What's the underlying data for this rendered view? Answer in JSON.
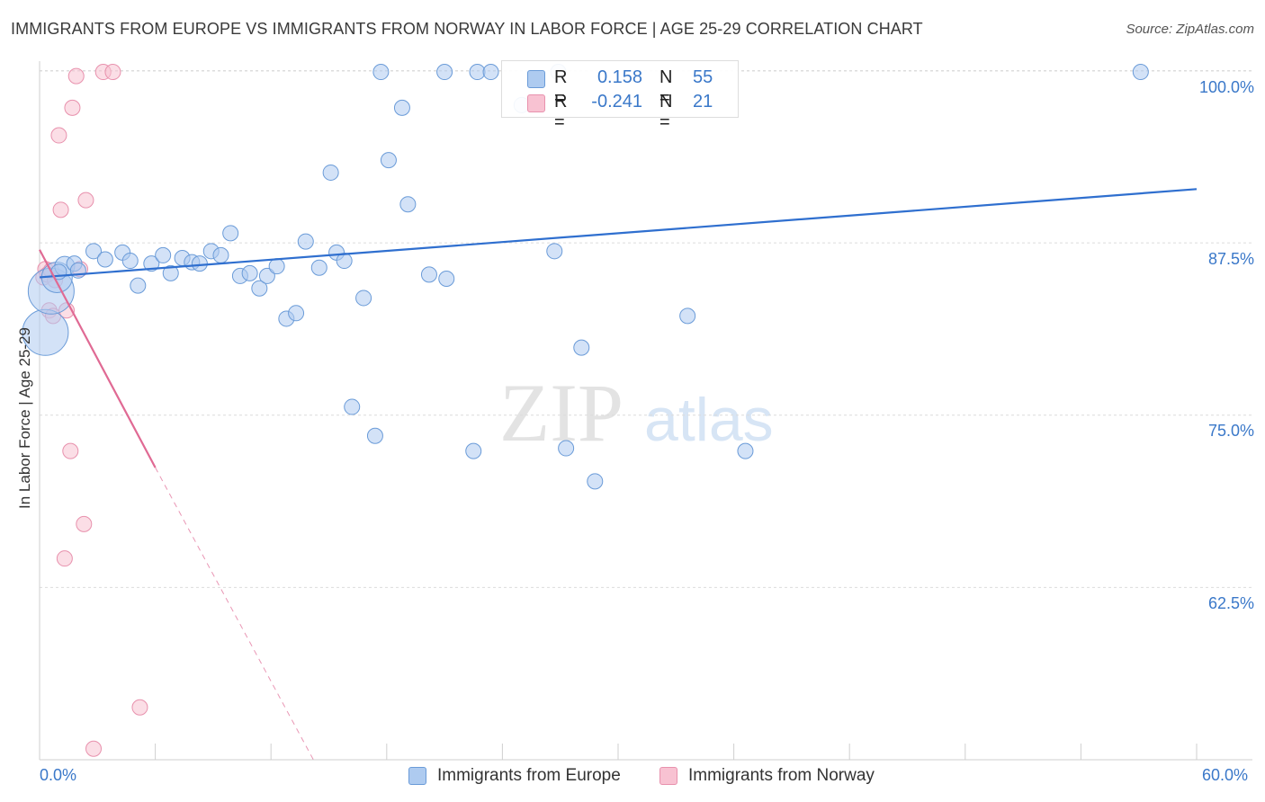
{
  "title": "IMMIGRANTS FROM EUROPE VS IMMIGRANTS FROM NORWAY IN LABOR FORCE | AGE 25-29 CORRELATION CHART",
  "source": "Source: ZipAtlas.com",
  "watermark": {
    "zip": "ZIP",
    "atlas": "atlas"
  },
  "legend": {
    "rows": [
      {
        "r_label": "R =",
        "r_value": "0.158",
        "n_label": "N =",
        "n_value": "55"
      },
      {
        "r_label": "R =",
        "r_value": "-0.241",
        "n_label": "N =",
        "n_value": "21"
      }
    ]
  },
  "bottom_legend": {
    "europe": "Immigrants from Europe",
    "norway": "Immigrants from Norway"
  },
  "colors": {
    "europe_fill": "#aecbf0",
    "europe_stroke": "#6a9bd8",
    "europe_line": "#2f6fcf",
    "norway_fill": "#f8c2d2",
    "norway_stroke": "#e891ad",
    "norway_line": "#e06a94",
    "tick_text": "#3a78c9",
    "grid": "#dcdcdc"
  },
  "chart_data": {
    "type": "scatter",
    "title": "IMMIGRANTS FROM EUROPE VS IMMIGRANTS FROM NORWAY IN LABOR FORCE | AGE 25-29 CORRELATION CHART",
    "xlabel": "",
    "ylabel": "In Labor Force | Age 25-29",
    "xlim": [
      0,
      60
    ],
    "ylim": [
      50,
      101
    ],
    "x_tick_labels": [
      "0.0%",
      "60.0%"
    ],
    "y_ticks": [
      62.5,
      75.0,
      87.5,
      100.0
    ],
    "y_tick_labels": [
      "62.5%",
      "75.0%",
      "87.5%",
      "100.0%"
    ],
    "grid": true,
    "legend_position": "top-center",
    "series": [
      {
        "name": "Immigrants from Europe",
        "r": 0.158,
        "n": 55,
        "trend": {
          "x0": 0,
          "y0": 85.0,
          "x1": 60,
          "y1": 91.4
        },
        "points": [
          {
            "x": 0.3,
            "y": 81.0,
            "s": 3
          },
          {
            "x": 0.6,
            "y": 84.0,
            "s": 3
          },
          {
            "x": 0.9,
            "y": 85.0,
            "s": 2
          },
          {
            "x": 1.3,
            "y": 85.8,
            "s": 1.3
          },
          {
            "x": 1.8,
            "y": 86.0,
            "s": 1
          },
          {
            "x": 2.8,
            "y": 86.9,
            "s": 1
          },
          {
            "x": 3.4,
            "y": 86.3,
            "s": 1
          },
          {
            "x": 4.3,
            "y": 86.8,
            "s": 1
          },
          {
            "x": 4.7,
            "y": 86.2,
            "s": 1
          },
          {
            "x": 5.1,
            "y": 84.4,
            "s": 1
          },
          {
            "x": 5.8,
            "y": 86.0,
            "s": 1
          },
          {
            "x": 6.4,
            "y": 86.6,
            "s": 1
          },
          {
            "x": 6.8,
            "y": 85.3,
            "s": 1
          },
          {
            "x": 7.4,
            "y": 86.4,
            "s": 1
          },
          {
            "x": 7.9,
            "y": 86.1,
            "s": 1
          },
          {
            "x": 8.3,
            "y": 86.0,
            "s": 1
          },
          {
            "x": 8.9,
            "y": 86.9,
            "s": 1
          },
          {
            "x": 9.4,
            "y": 86.6,
            "s": 1
          },
          {
            "x": 9.9,
            "y": 88.2,
            "s": 1
          },
          {
            "x": 10.4,
            "y": 85.1,
            "s": 1
          },
          {
            "x": 10.9,
            "y": 85.3,
            "s": 1
          },
          {
            "x": 11.4,
            "y": 84.2,
            "s": 1
          },
          {
            "x": 11.8,
            "y": 85.1,
            "s": 1
          },
          {
            "x": 12.3,
            "y": 85.8,
            "s": 1
          },
          {
            "x": 12.8,
            "y": 82.0,
            "s": 1
          },
          {
            "x": 13.3,
            "y": 82.4,
            "s": 1
          },
          {
            "x": 13.8,
            "y": 87.6,
            "s": 1
          },
          {
            "x": 14.5,
            "y": 85.7,
            "s": 1
          },
          {
            "x": 15.1,
            "y": 92.6,
            "s": 1
          },
          {
            "x": 15.4,
            "y": 86.8,
            "s": 1
          },
          {
            "x": 15.8,
            "y": 86.2,
            "s": 1
          },
          {
            "x": 16.2,
            "y": 75.6,
            "s": 1
          },
          {
            "x": 16.8,
            "y": 83.5,
            "s": 1
          },
          {
            "x": 17.4,
            "y": 73.5,
            "s": 1
          },
          {
            "x": 17.7,
            "y": 99.9,
            "s": 1
          },
          {
            "x": 18.1,
            "y": 93.5,
            "s": 1
          },
          {
            "x": 18.8,
            "y": 97.3,
            "s": 1
          },
          {
            "x": 19.1,
            "y": 90.3,
            "s": 1
          },
          {
            "x": 20.2,
            "y": 85.2,
            "s": 1
          },
          {
            "x": 21.0,
            "y": 99.9,
            "s": 1
          },
          {
            "x": 21.1,
            "y": 84.9,
            "s": 1
          },
          {
            "x": 22.5,
            "y": 72.4,
            "s": 1
          },
          {
            "x": 22.7,
            "y": 99.9,
            "s": 1
          },
          {
            "x": 23.4,
            "y": 99.9,
            "s": 1
          },
          {
            "x": 25.0,
            "y": 97.5,
            "s": 1
          },
          {
            "x": 26.9,
            "y": 99.9,
            "s": 1
          },
          {
            "x": 26.7,
            "y": 86.9,
            "s": 1
          },
          {
            "x": 27.3,
            "y": 72.6,
            "s": 1
          },
          {
            "x": 28.1,
            "y": 79.9,
            "s": 1
          },
          {
            "x": 28.8,
            "y": 70.2,
            "s": 1
          },
          {
            "x": 33.6,
            "y": 82.2,
            "s": 1
          },
          {
            "x": 36.6,
            "y": 72.4,
            "s": 1
          },
          {
            "x": 57.1,
            "y": 99.9,
            "s": 1
          },
          {
            "x": 2.0,
            "y": 85.5,
            "s": 1
          },
          {
            "x": 1.0,
            "y": 85.4,
            "s": 1
          }
        ]
      },
      {
        "name": "Immigrants from Norway",
        "r": -0.241,
        "n": 21,
        "trend": {
          "x0": 0,
          "y0": 87.0,
          "x1": 6.0,
          "y1": 71.2,
          "dash_x1": 14.2,
          "dash_y1": 50.0
        },
        "points": [
          {
            "x": 0.2,
            "y": 85.0,
            "s": 1
          },
          {
            "x": 0.3,
            "y": 85.6,
            "s": 1
          },
          {
            "x": 0.4,
            "y": 85.2,
            "s": 1
          },
          {
            "x": 0.5,
            "y": 82.6,
            "s": 1
          },
          {
            "x": 0.7,
            "y": 82.2,
            "s": 1
          },
          {
            "x": 1.0,
            "y": 95.3,
            "s": 1
          },
          {
            "x": 1.1,
            "y": 89.9,
            "s": 1
          },
          {
            "x": 1.4,
            "y": 82.6,
            "s": 1
          },
          {
            "x": 1.7,
            "y": 97.3,
            "s": 1
          },
          {
            "x": 1.9,
            "y": 99.6,
            "s": 1
          },
          {
            "x": 2.1,
            "y": 85.6,
            "s": 1
          },
          {
            "x": 2.4,
            "y": 90.6,
            "s": 1
          },
          {
            "x": 1.6,
            "y": 72.4,
            "s": 1
          },
          {
            "x": 2.3,
            "y": 67.1,
            "s": 1
          },
          {
            "x": 1.3,
            "y": 64.6,
            "s": 1
          },
          {
            "x": 3.3,
            "y": 99.9,
            "s": 1
          },
          {
            "x": 3.8,
            "y": 99.9,
            "s": 1
          },
          {
            "x": 5.2,
            "y": 53.8,
            "s": 1
          },
          {
            "x": 2.8,
            "y": 50.8,
            "s": 1
          },
          {
            "x": 0.8,
            "y": 84.8,
            "s": 1
          },
          {
            "x": 0.6,
            "y": 85.5,
            "s": 1
          }
        ]
      }
    ]
  }
}
